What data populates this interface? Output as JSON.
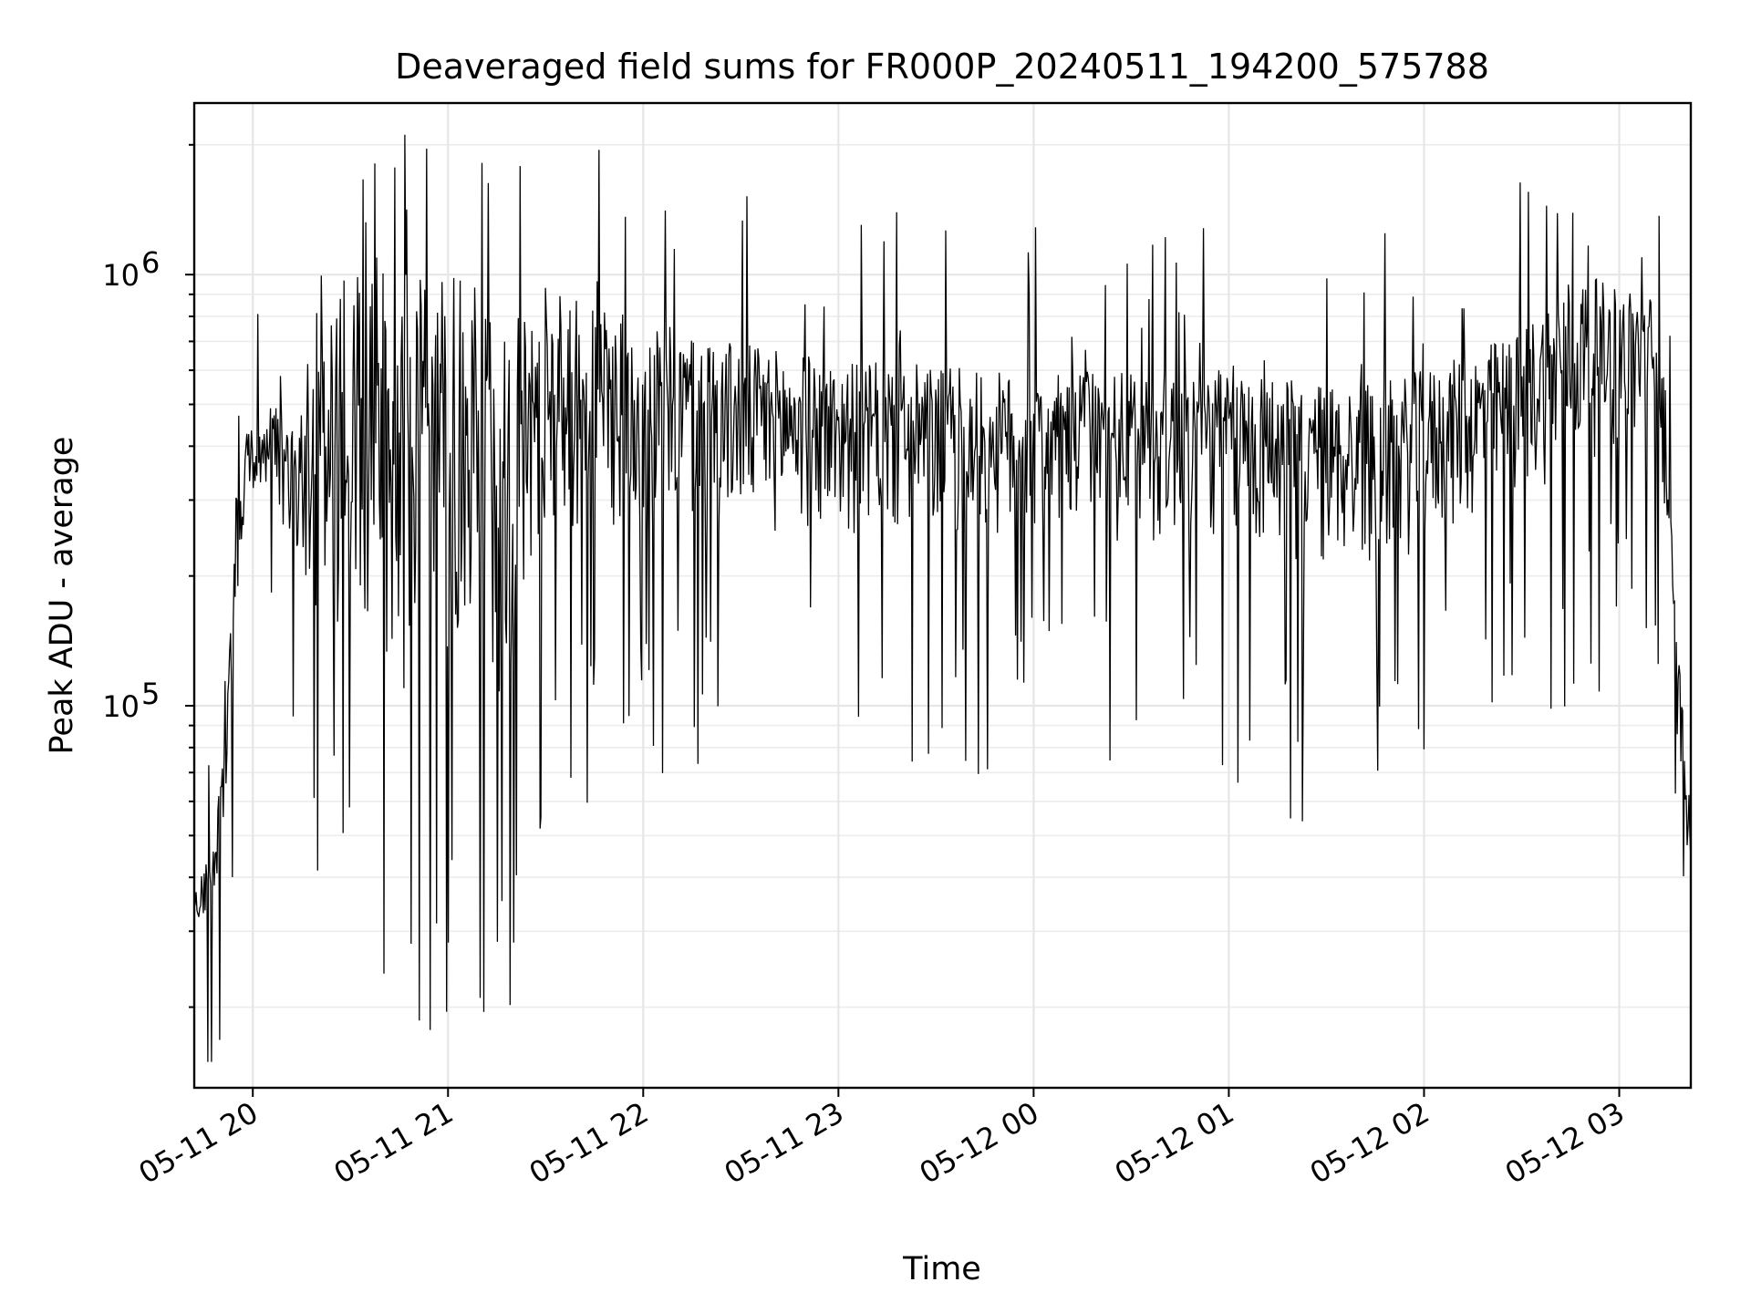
{
  "chart_data": {
    "type": "line",
    "title": "Deaveraged field sums for FR000P_20240511_194200_575788",
    "xlabel": "Time",
    "ylabel": "Peak ADU - average",
    "yscale": "log",
    "ylim": [
      13000,
      2500000
    ],
    "xlim": [
      "2024-05-11 19:42",
      "2024-05-12 03:22"
    ],
    "grid": true,
    "x_ticks": [
      {
        "value": "2024-05-11 20:00",
        "label": "05-11 20"
      },
      {
        "value": "2024-05-11 21:00",
        "label": "05-11 21"
      },
      {
        "value": "2024-05-11 22:00",
        "label": "05-11 22"
      },
      {
        "value": "2024-05-11 23:00",
        "label": "05-11 23"
      },
      {
        "value": "2024-05-12 00:00",
        "label": "05-12 00"
      },
      {
        "value": "2024-05-12 01:00",
        "label": "05-12 01"
      },
      {
        "value": "2024-05-12 02:00",
        "label": "05-12 02"
      },
      {
        "value": "2024-05-12 03:00",
        "label": "05-12 03"
      }
    ],
    "y_ticks": [
      {
        "value": 100000,
        "base": "10",
        "exp": "5"
      },
      {
        "value": 1000000,
        "base": "10",
        "exp": "6"
      }
    ],
    "series_color": "#000000",
    "envelope": {
      "x": [
        "2024-05-11 19:42",
        "2024-05-11 19:48",
        "2024-05-11 19:52",
        "2024-05-11 19:55",
        "2024-05-11 19:58",
        "2024-05-11 20:03",
        "2024-05-11 20:07",
        "2024-05-11 20:12",
        "2024-05-11 20:20",
        "2024-05-11 20:30",
        "2024-05-11 20:45",
        "2024-05-11 21:00",
        "2024-05-11 21:10",
        "2024-05-11 21:20",
        "2024-05-11 21:30",
        "2024-05-11 21:45",
        "2024-05-11 22:00",
        "2024-05-11 22:30",
        "2024-05-11 23:00",
        "2024-05-11 23:30",
        "2024-05-12 00:00",
        "2024-05-12 00:30",
        "2024-05-12 01:00",
        "2024-05-12 01:30",
        "2024-05-12 01:50",
        "2024-05-12 02:10",
        "2024-05-12 02:30",
        "2024-05-12 02:45",
        "2024-05-12 03:00",
        "2024-05-12 03:10",
        "2024-05-12 03:14",
        "2024-05-12 03:17",
        "2024-05-12 03:22"
      ],
      "high": [
        36000,
        50000,
        95000,
        330000,
        450000,
        420000,
        550000,
        430000,
        700000,
        1000000,
        1050000,
        1000000,
        930000,
        860000,
        900000,
        880000,
        780000,
        700000,
        630000,
        620000,
        580000,
        600000,
        620000,
        560000,
        570000,
        640000,
        750000,
        1000000,
        950000,
        900000,
        650000,
        180000,
        55000
      ],
      "low": [
        26000,
        30000,
        55000,
        140000,
        260000,
        300000,
        250000,
        150000,
        100000,
        70000,
        50000,
        45000,
        45000,
        50000,
        160000,
        150000,
        170000,
        180000,
        180000,
        170000,
        170000,
        170000,
        170000,
        140000,
        150000,
        180000,
        220000,
        250000,
        280000,
        300000,
        200000,
        80000,
        32000
      ]
    }
  }
}
